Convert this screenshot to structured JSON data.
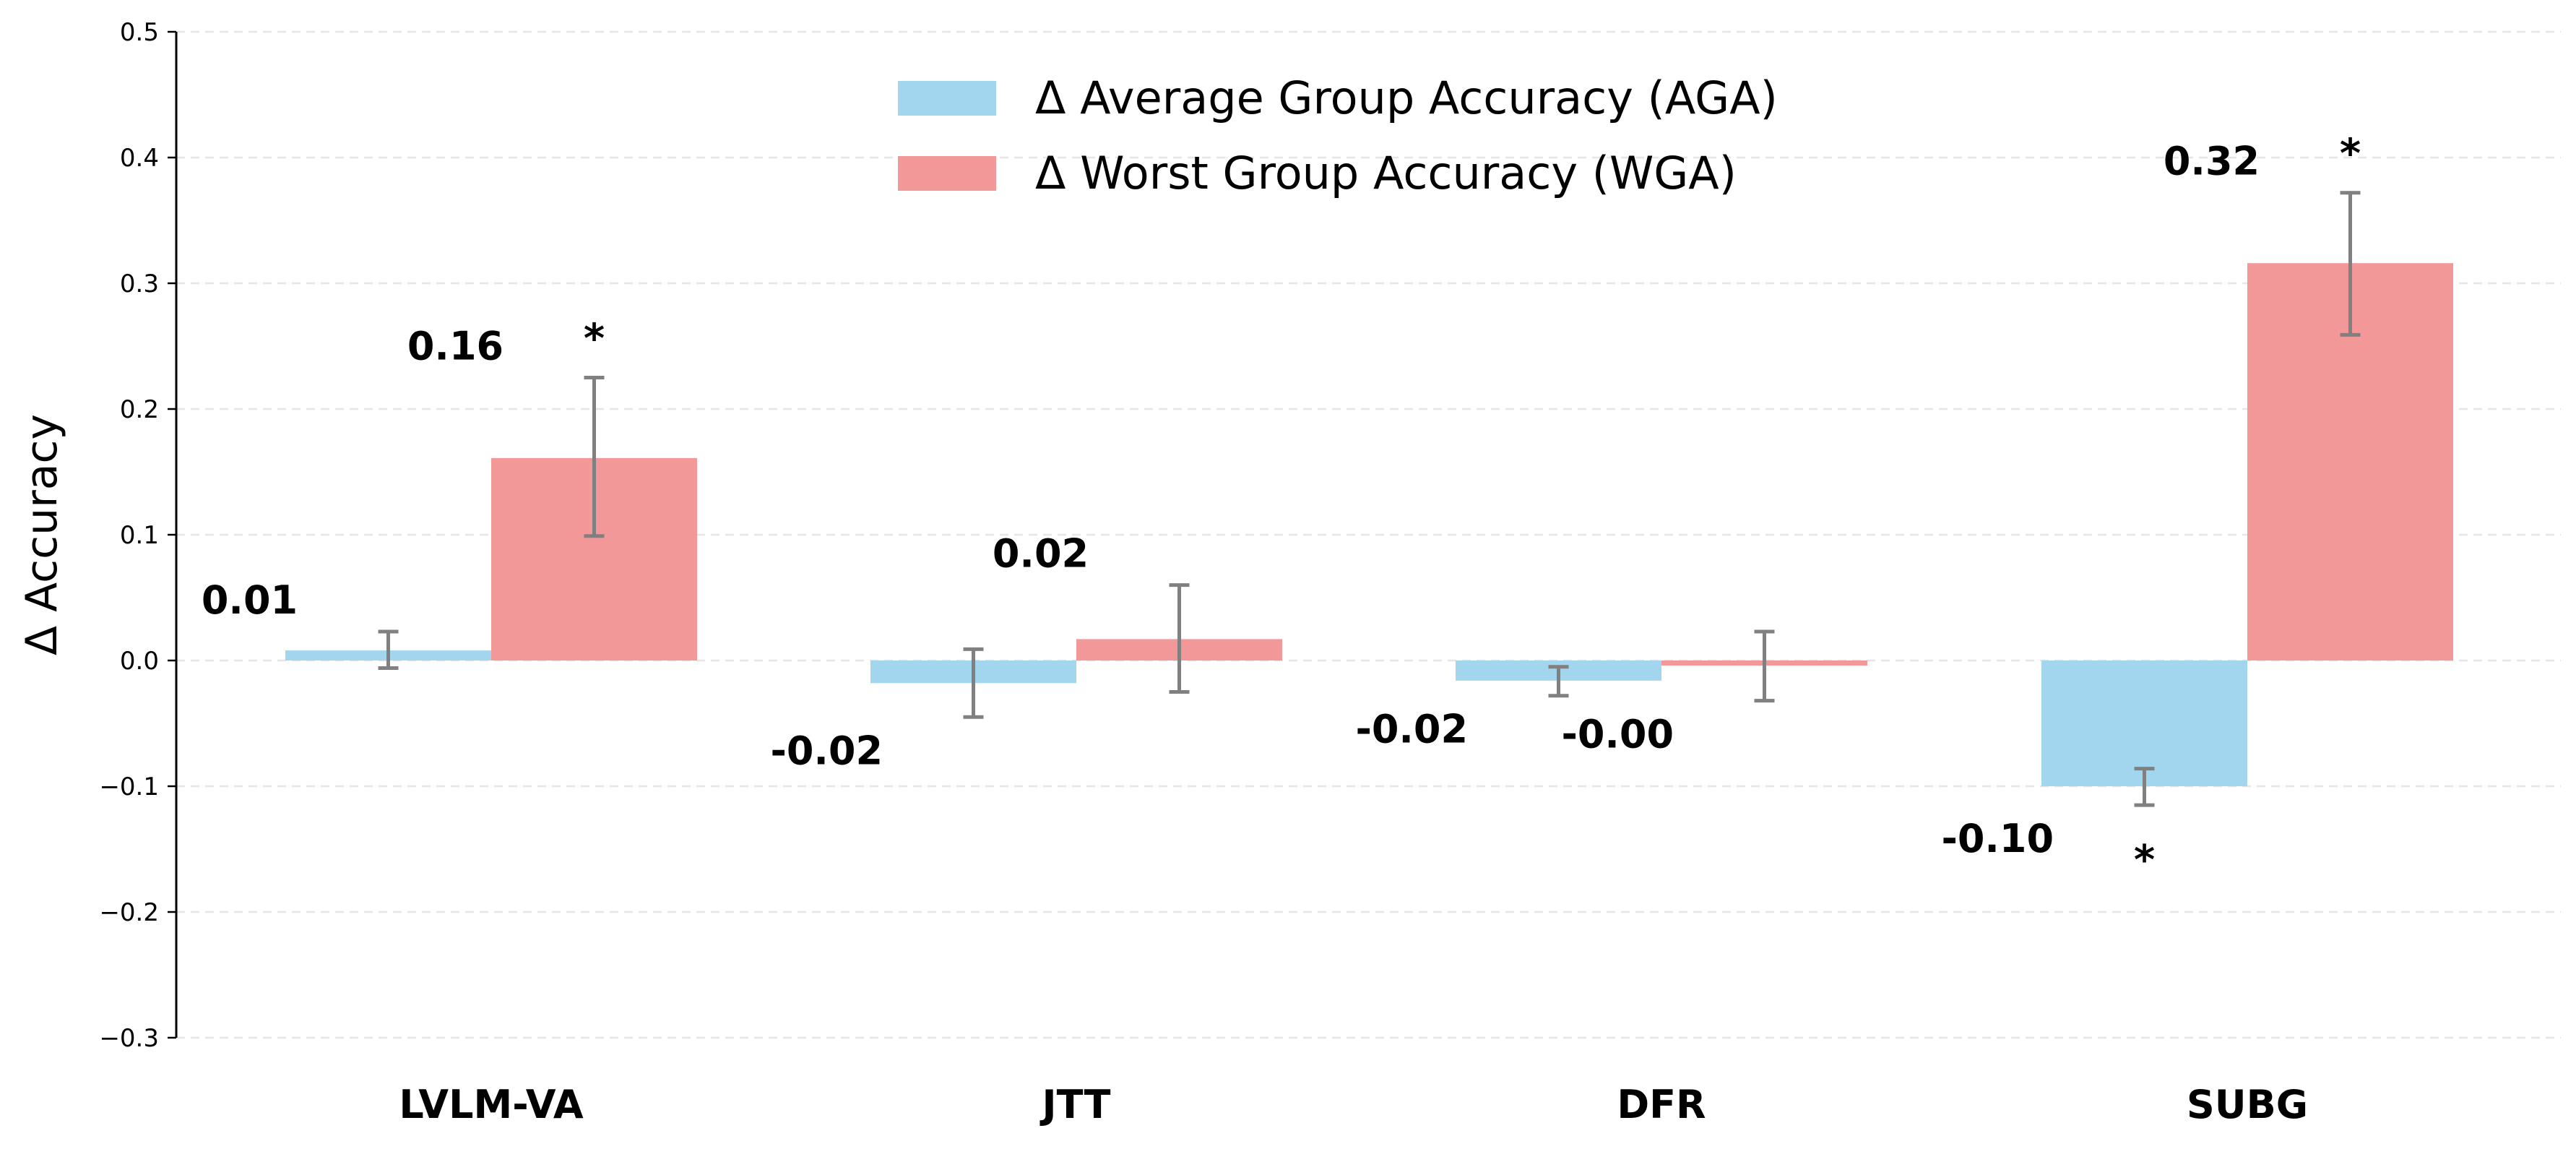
{
  "chart_data": {
    "type": "bar",
    "categories": [
      "LVLM-VA",
      "JTT",
      "DFR",
      "SUBG"
    ],
    "ylabel": "Δ Accuracy",
    "xlabel": "",
    "ylim": [
      -0.3,
      0.5
    ],
    "yticks": [
      0.5,
      0.4,
      0.3,
      0.2,
      0.1,
      0.0,
      -0.1,
      -0.2,
      -0.3
    ],
    "ytick_labels": [
      "0.5",
      "0.4",
      "0.3",
      "0.2",
      "0.1",
      "0.0",
      "−0.1",
      "−0.2",
      "−0.3"
    ],
    "grid": "horizontal dashed",
    "legend_position": "top-center",
    "series": [
      {
        "name": "Δ Average Group Accuracy (AGA)",
        "color": "#a2d6ee",
        "values": [
          0.008,
          -0.018,
          -0.016,
          -0.1
        ],
        "error_low": [
          -0.006,
          -0.045,
          -0.028,
          -0.115
        ],
        "error_high": [
          0.023,
          0.009,
          -0.005,
          -0.086
        ],
        "labels": [
          "0.01",
          "-0.02",
          "-0.02",
          "-0.10"
        ],
        "significant": [
          false,
          false,
          false,
          true
        ]
      },
      {
        "name": "Δ Worst Group Accuracy (WGA)",
        "color": "#f29898",
        "values": [
          0.161,
          0.017,
          -0.004,
          0.316
        ],
        "error_low": [
          0.099,
          -0.025,
          -0.032,
          0.259
        ],
        "error_high": [
          0.225,
          0.06,
          0.023,
          0.372
        ],
        "labels": [
          "0.16",
          "0.02",
          "-0.00",
          "0.32"
        ],
        "significant": [
          true,
          false,
          false,
          true
        ]
      }
    ],
    "significance_marker": "*",
    "error_bar_color": "#808080"
  }
}
